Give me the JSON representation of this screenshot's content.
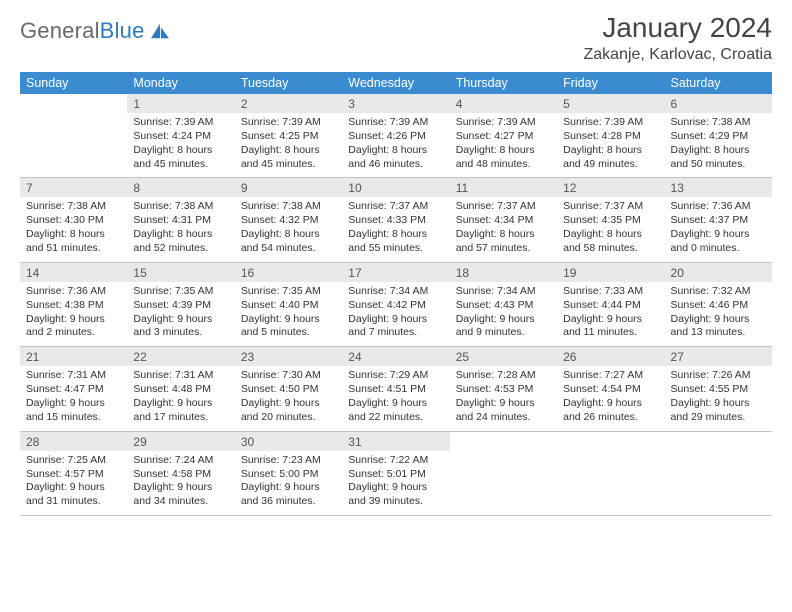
{
  "brand": {
    "part1": "General",
    "part2": "Blue"
  },
  "title": "January 2024",
  "location": "Zakanje, Karlovac, Croatia",
  "colors": {
    "header_bg": "#3a8bd0",
    "header_fg": "#ffffff",
    "daynum_bg": "#e7e9eb",
    "rule": "#b9c6d2",
    "logo_gray": "#6a6a6a",
    "logo_blue": "#2f7bbf"
  },
  "day_headers": [
    "Sunday",
    "Monday",
    "Tuesday",
    "Wednesday",
    "Thursday",
    "Friday",
    "Saturday"
  ],
  "weeks": [
    [
      null,
      {
        "n": "1",
        "sr": "7:39 AM",
        "ss": "4:24 PM",
        "dh": "8",
        "dm": "45"
      },
      {
        "n": "2",
        "sr": "7:39 AM",
        "ss": "4:25 PM",
        "dh": "8",
        "dm": "45"
      },
      {
        "n": "3",
        "sr": "7:39 AM",
        "ss": "4:26 PM",
        "dh": "8",
        "dm": "46"
      },
      {
        "n": "4",
        "sr": "7:39 AM",
        "ss": "4:27 PM",
        "dh": "8",
        "dm": "48"
      },
      {
        "n": "5",
        "sr": "7:39 AM",
        "ss": "4:28 PM",
        "dh": "8",
        "dm": "49"
      },
      {
        "n": "6",
        "sr": "7:38 AM",
        "ss": "4:29 PM",
        "dh": "8",
        "dm": "50"
      }
    ],
    [
      {
        "n": "7",
        "sr": "7:38 AM",
        "ss": "4:30 PM",
        "dh": "8",
        "dm": "51"
      },
      {
        "n": "8",
        "sr": "7:38 AM",
        "ss": "4:31 PM",
        "dh": "8",
        "dm": "52"
      },
      {
        "n": "9",
        "sr": "7:38 AM",
        "ss": "4:32 PM",
        "dh": "8",
        "dm": "54"
      },
      {
        "n": "10",
        "sr": "7:37 AM",
        "ss": "4:33 PM",
        "dh": "8",
        "dm": "55"
      },
      {
        "n": "11",
        "sr": "7:37 AM",
        "ss": "4:34 PM",
        "dh": "8",
        "dm": "57"
      },
      {
        "n": "12",
        "sr": "7:37 AM",
        "ss": "4:35 PM",
        "dh": "8",
        "dm": "58"
      },
      {
        "n": "13",
        "sr": "7:36 AM",
        "ss": "4:37 PM",
        "dh": "9",
        "dm": "0"
      }
    ],
    [
      {
        "n": "14",
        "sr": "7:36 AM",
        "ss": "4:38 PM",
        "dh": "9",
        "dm": "2"
      },
      {
        "n": "15",
        "sr": "7:35 AM",
        "ss": "4:39 PM",
        "dh": "9",
        "dm": "3"
      },
      {
        "n": "16",
        "sr": "7:35 AM",
        "ss": "4:40 PM",
        "dh": "9",
        "dm": "5"
      },
      {
        "n": "17",
        "sr": "7:34 AM",
        "ss": "4:42 PM",
        "dh": "9",
        "dm": "7"
      },
      {
        "n": "18",
        "sr": "7:34 AM",
        "ss": "4:43 PM",
        "dh": "9",
        "dm": "9"
      },
      {
        "n": "19",
        "sr": "7:33 AM",
        "ss": "4:44 PM",
        "dh": "9",
        "dm": "11"
      },
      {
        "n": "20",
        "sr": "7:32 AM",
        "ss": "4:46 PM",
        "dh": "9",
        "dm": "13"
      }
    ],
    [
      {
        "n": "21",
        "sr": "7:31 AM",
        "ss": "4:47 PM",
        "dh": "9",
        "dm": "15"
      },
      {
        "n": "22",
        "sr": "7:31 AM",
        "ss": "4:48 PM",
        "dh": "9",
        "dm": "17"
      },
      {
        "n": "23",
        "sr": "7:30 AM",
        "ss": "4:50 PM",
        "dh": "9",
        "dm": "20"
      },
      {
        "n": "24",
        "sr": "7:29 AM",
        "ss": "4:51 PM",
        "dh": "9",
        "dm": "22"
      },
      {
        "n": "25",
        "sr": "7:28 AM",
        "ss": "4:53 PM",
        "dh": "9",
        "dm": "24"
      },
      {
        "n": "26",
        "sr": "7:27 AM",
        "ss": "4:54 PM",
        "dh": "9",
        "dm": "26"
      },
      {
        "n": "27",
        "sr": "7:26 AM",
        "ss": "4:55 PM",
        "dh": "9",
        "dm": "29"
      }
    ],
    [
      {
        "n": "28",
        "sr": "7:25 AM",
        "ss": "4:57 PM",
        "dh": "9",
        "dm": "31"
      },
      {
        "n": "29",
        "sr": "7:24 AM",
        "ss": "4:58 PM",
        "dh": "9",
        "dm": "34"
      },
      {
        "n": "30",
        "sr": "7:23 AM",
        "ss": "5:00 PM",
        "dh": "9",
        "dm": "36"
      },
      {
        "n": "31",
        "sr": "7:22 AM",
        "ss": "5:01 PM",
        "dh": "9",
        "dm": "39"
      },
      null,
      null,
      null
    ]
  ],
  "labels": {
    "sunrise": "Sunrise:",
    "sunset": "Sunset:",
    "daylight": "Daylight:",
    "hours": "hours",
    "and": "and",
    "minutes": "minutes."
  }
}
